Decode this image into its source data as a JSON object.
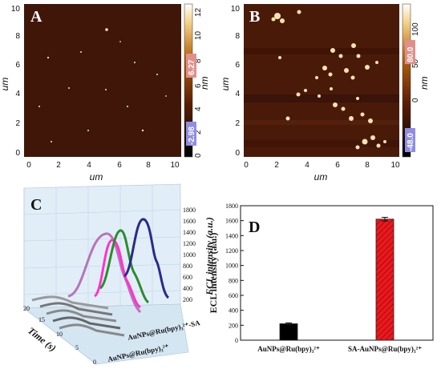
{
  "panels": {
    "A": {
      "letter": "A",
      "min_label": "-2.98",
      "max_label": "6.27",
      "unit": "nm",
      "colorbar_ticks": [
        "0",
        "2",
        "4",
        "6",
        "8",
        "10",
        "12"
      ],
      "axis_ticks": [
        "0",
        "2",
        "4",
        "6",
        "8",
        "10"
      ],
      "xlabel": "um",
      "ylabel": "um"
    },
    "B": {
      "letter": "B",
      "min_label": "-48.0",
      "max_label": "80.0",
      "unit": "nm",
      "colorbar_ticks": [
        "0",
        "50",
        "100"
      ],
      "axis_ticks": [
        "0",
        "2",
        "4",
        "6",
        "8",
        "10"
      ],
      "xlabel": "um",
      "ylabel": "um"
    },
    "C": {
      "letter": "C",
      "zlabel": "ECL intensity (a.u.)",
      "time_label": "Time (s)",
      "zticks": [
        "200",
        "400",
        "600",
        "800",
        "1000",
        "1200",
        "1400",
        "1600",
        "1800"
      ],
      "time_ticks": [
        "0",
        "5",
        "10",
        "15",
        "20"
      ],
      "series_labels": [
        "AuNPs@Ru(bpy)₃²⁺-SA",
        "AuNPs@Ru(bpy)₃²⁺"
      ]
    },
    "D": {
      "letter": "D"
    }
  },
  "chart_data": [
    {
      "type": "bar",
      "panel": "D",
      "categories": [
        "AuNPs@Ru(bpy)₃²⁺",
        "SA-AuNPs@Ru(bpy)₃²⁺"
      ],
      "values": [
        220,
        1620
      ],
      "errors": [
        12,
        25
      ],
      "colors": [
        "#000000",
        "#e8191e"
      ],
      "ylabel": "ECL intensity (a.u.)",
      "ylim": [
        0,
        1800
      ],
      "yticks": [
        0,
        200,
        400,
        600,
        800,
        1000,
        1200,
        1400,
        1600,
        1800
      ],
      "grid": false
    }
  ]
}
